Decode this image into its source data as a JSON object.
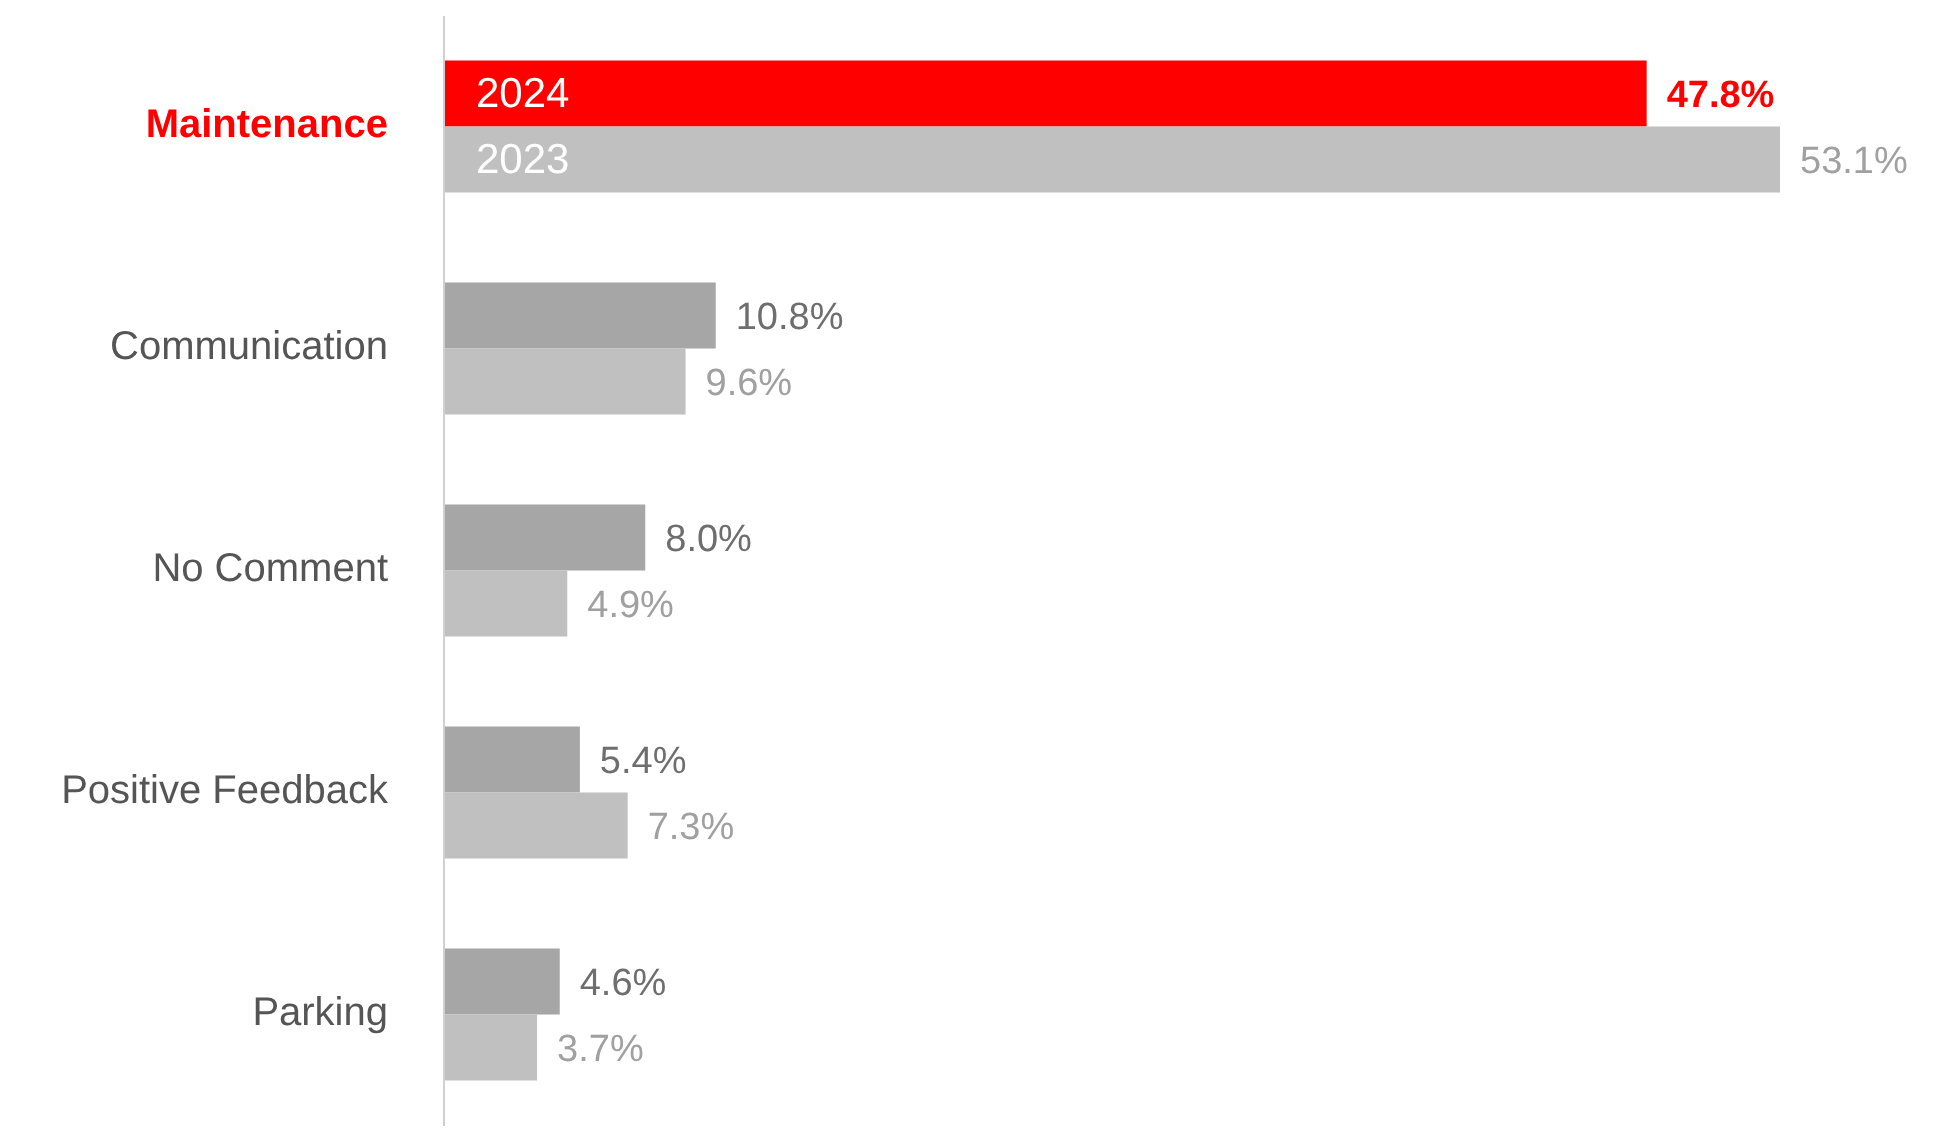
{
  "chart_data": {
    "type": "bar",
    "orientation": "horizontal",
    "categories": [
      "Maintenance",
      "Communication",
      "No Comment",
      "Positive Feedback",
      "Parking"
    ],
    "series": [
      {
        "name": "2024",
        "color": "#a6a6a6",
        "colors": [
          "#ff0000",
          "#a6a6a6",
          "#a6a6a6",
          "#a6a6a6",
          "#a6a6a6"
        ],
        "values": [
          47.8,
          10.8,
          8.0,
          5.4,
          4.6
        ],
        "value_labels": [
          "47.8%",
          "10.8%",
          "8.0%",
          "5.4%",
          "4.6%"
        ]
      },
      {
        "name": "2023",
        "color": "#c0c0c0",
        "colors": [
          "#c0c0c0",
          "#c0c0c0",
          "#c0c0c0",
          "#c0c0c0",
          "#c0c0c0"
        ],
        "values": [
          53.1,
          9.6,
          4.9,
          7.3,
          3.7
        ],
        "value_labels": [
          "53.1%",
          "9.6%",
          "4.9%",
          "7.3%",
          "3.7%"
        ]
      }
    ]
  }
}
